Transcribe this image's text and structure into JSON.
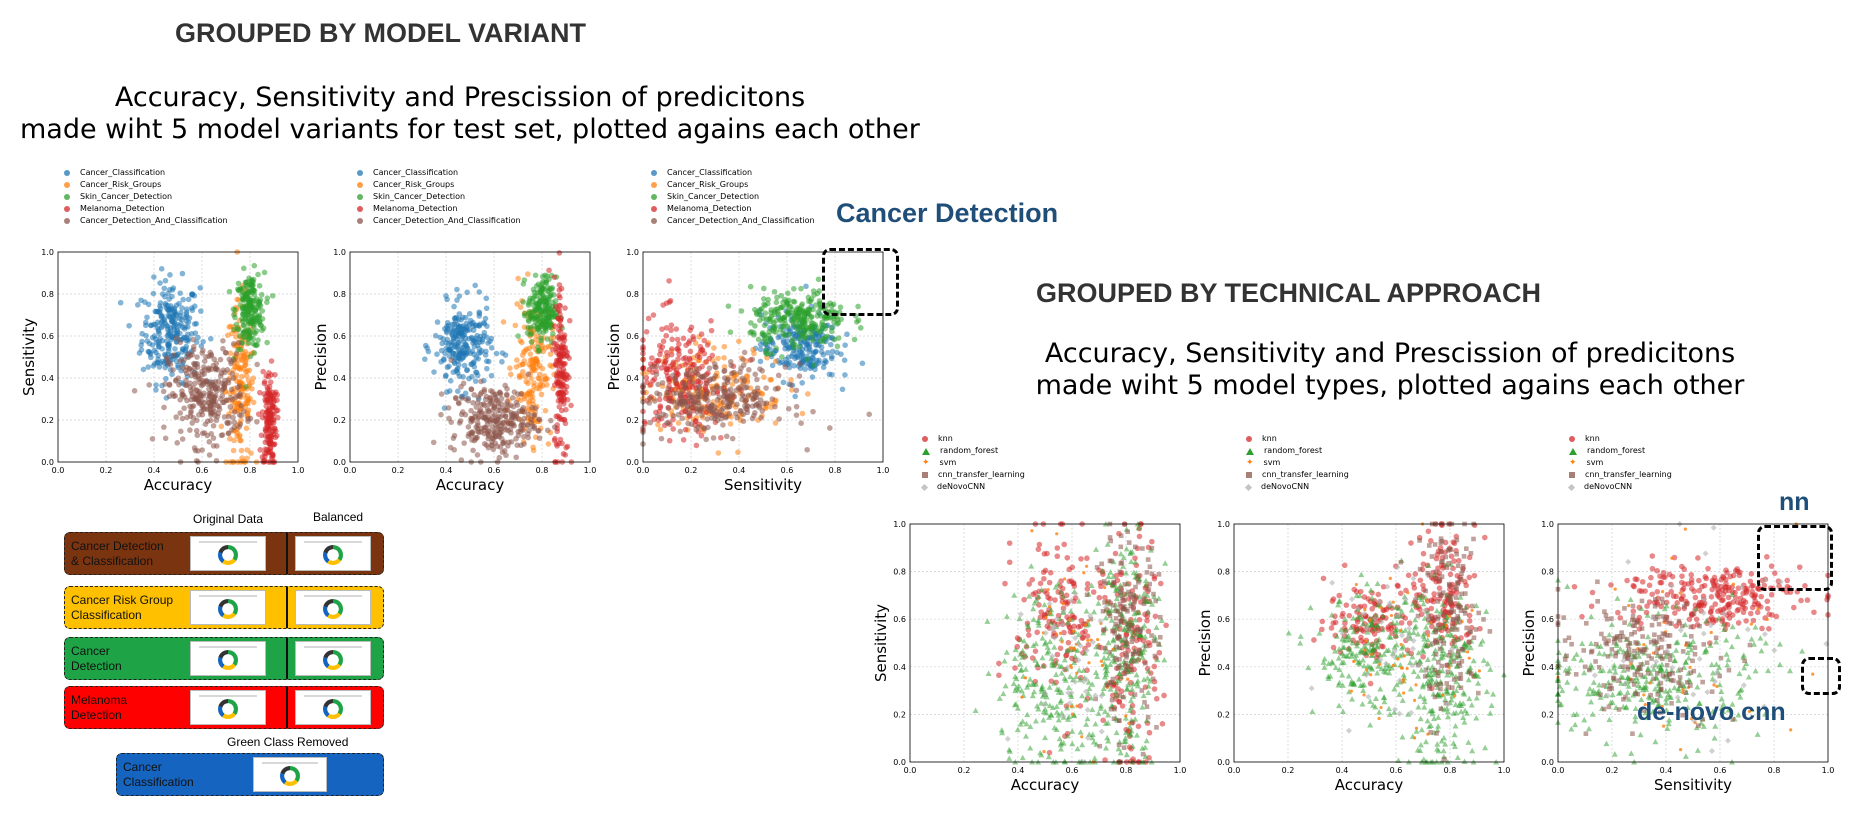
{
  "left_section": {
    "title": "GROUPED BY MODEL VARIANT",
    "subtitle_line1": "Accuracy, Sensitivity and Prescission of predicitons",
    "subtitle_line2": "made wiht 5 model variants for test set, plotted agains each other",
    "legend": [
      "Cancer_Classification",
      "Cancer_Risk_Groups",
      "Skin_Cancer_Detection",
      "Melanoma_Detection",
      "Cancer_Detection_And_Classification"
    ],
    "colors": [
      "#1f77b4",
      "#ff7f0e",
      "#2ca02c",
      "#d62728",
      "#8c564b"
    ]
  },
  "right_section": {
    "title": "GROUPED BY TECHNICAL APPROACH",
    "subtitle_line1": "Accuracy, Sensitivity and Prescission of predicitons",
    "subtitle_line2": "made wiht 5 model types, plotted agains each other",
    "legend": [
      "knn",
      "random_forest",
      "svm",
      "cnn_transfer_learning",
      "deNovoCNN"
    ],
    "colors": [
      "#d62728",
      "#2ca02c",
      "#ff7f0e",
      "#8c564b",
      "#b0b0b0"
    ],
    "markers": [
      "circle",
      "triangle",
      "star",
      "square",
      "diamond"
    ]
  },
  "annotations": {
    "cancer_detection": "Cancer Detection",
    "nn": "nn",
    "de_novo_cnn": "de-novo cnn"
  },
  "data_panels": {
    "col_original": "Original Data",
    "col_balanced": "Balanced",
    "green_removed": "Green Class Removed",
    "rows": [
      {
        "label": "Cancer Detection\n& Classification",
        "color": "#7b3410"
      },
      {
        "label": "Cancer Risk Group\nClassification",
        "color": "#ffc000"
      },
      {
        "label": "Cancer\nDetection",
        "color": "#1ea446"
      },
      {
        "label": "Melanoma\nDetection",
        "color": "#ff0000"
      },
      {
        "label": "Cancer\nClassification",
        "color": "#1565c0"
      }
    ]
  },
  "chart_data": [
    {
      "type": "scatter",
      "xlabel": "Accuracy",
      "ylabel": "Sensitivity",
      "xlim": [
        0,
        1
      ],
      "ylim": [
        0,
        1
      ],
      "grid": true,
      "xticks": [
        "0.0",
        "0.2",
        "0.4",
        "0.6",
        "0.8",
        "1.0"
      ],
      "yticks": [
        "0.0",
        "0.2",
        "0.4",
        "0.6",
        "0.8",
        "1.0"
      ],
      "series": [
        {
          "name": "Cancer_Classification",
          "clusters": [
            {
              "x": 0.47,
              "y": 0.62,
              "sx": 0.06,
              "sy": 0.12,
              "n": 260
            }
          ]
        },
        {
          "name": "Cancer_Risk_Groups",
          "clusters": [
            {
              "x": 0.76,
              "y": 0.35,
              "sx": 0.03,
              "sy": 0.2,
              "n": 180
            }
          ]
        },
        {
          "name": "Skin_Cancer_Detection",
          "clusters": [
            {
              "x": 0.8,
              "y": 0.72,
              "sx": 0.03,
              "sy": 0.09,
              "n": 200
            }
          ]
        },
        {
          "name": "Melanoma_Detection",
          "clusters": [
            {
              "x": 0.88,
              "y": 0.2,
              "sx": 0.015,
              "sy": 0.12,
              "n": 160
            }
          ]
        },
        {
          "name": "Cancer_Detection_And_Classification",
          "clusters": [
            {
              "x": 0.62,
              "y": 0.32,
              "sx": 0.08,
              "sy": 0.12,
              "n": 300
            }
          ]
        }
      ]
    },
    {
      "type": "scatter",
      "xlabel": "Accuracy",
      "ylabel": "Precision",
      "xlim": [
        0,
        1
      ],
      "ylim": [
        0,
        1
      ],
      "grid": true,
      "xticks": [
        "0.0",
        "0.2",
        "0.4",
        "0.6",
        "0.8",
        "1.0"
      ],
      "yticks": [
        "0.0",
        "0.2",
        "0.4",
        "0.6",
        "0.8",
        "1.0"
      ],
      "series": [
        {
          "name": "Cancer_Classification",
          "clusters": [
            {
              "x": 0.47,
              "y": 0.55,
              "sx": 0.06,
              "sy": 0.1,
              "n": 240
            }
          ]
        },
        {
          "name": "Cancer_Risk_Groups",
          "clusters": [
            {
              "x": 0.76,
              "y": 0.45,
              "sx": 0.04,
              "sy": 0.17,
              "n": 170
            }
          ]
        },
        {
          "name": "Skin_Cancer_Detection",
          "clusters": [
            {
              "x": 0.8,
              "y": 0.72,
              "sx": 0.03,
              "sy": 0.08,
              "n": 200
            }
          ]
        },
        {
          "name": "Melanoma_Detection",
          "clusters": [
            {
              "x": 0.88,
              "y": 0.45,
              "sx": 0.015,
              "sy": 0.22,
              "n": 170
            }
          ]
        },
        {
          "name": "Cancer_Detection_And_Classification",
          "clusters": [
            {
              "x": 0.6,
              "y": 0.2,
              "sx": 0.09,
              "sy": 0.08,
              "n": 280
            }
          ]
        }
      ]
    },
    {
      "type": "scatter",
      "xlabel": "Sensitivity",
      "ylabel": "Precision",
      "xlim": [
        0,
        1
      ],
      "ylim": [
        0,
        1
      ],
      "grid": true,
      "xticks": [
        "0.0",
        "0.2",
        "0.4",
        "0.6",
        "0.8",
        "1.0"
      ],
      "yticks": [
        "0.0",
        "0.2",
        "0.4",
        "0.6",
        "0.8",
        "1.0"
      ],
      "series": [
        {
          "name": "Cancer_Classification",
          "clusters": [
            {
              "x": 0.65,
              "y": 0.55,
              "sx": 0.08,
              "sy": 0.08,
              "n": 220
            }
          ]
        },
        {
          "name": "Cancer_Risk_Groups",
          "clusters": [
            {
              "x": 0.3,
              "y": 0.35,
              "sx": 0.15,
              "sy": 0.1,
              "n": 180
            }
          ]
        },
        {
          "name": "Skin_Cancer_Detection",
          "clusters": [
            {
              "x": 0.65,
              "y": 0.68,
              "sx": 0.1,
              "sy": 0.07,
              "n": 260
            }
          ]
        },
        {
          "name": "Melanoma_Detection",
          "clusters": [
            {
              "x": 0.15,
              "y": 0.4,
              "sx": 0.1,
              "sy": 0.14,
              "n": 220
            }
          ]
        },
        {
          "name": "Cancer_Detection_And_Classification",
          "clusters": [
            {
              "x": 0.3,
              "y": 0.3,
              "sx": 0.15,
              "sy": 0.08,
              "n": 280
            }
          ]
        }
      ]
    },
    {
      "type": "scatter",
      "xlabel": "Accuracy",
      "ylabel": "Sensitivity",
      "xlim": [
        0,
        1
      ],
      "ylim": [
        0,
        1
      ],
      "grid": true,
      "xticks": [
        "0.0",
        "0.2",
        "0.4",
        "0.6",
        "0.8",
        "1.0"
      ],
      "yticks": [
        "0.0",
        "0.2",
        "0.4",
        "0.6",
        "0.8",
        "1.0"
      ],
      "series": [
        {
          "name": "knn",
          "clusters": [
            {
              "x": 0.55,
              "y": 0.6,
              "sx": 0.08,
              "sy": 0.2,
              "n": 150
            },
            {
              "x": 0.82,
              "y": 0.45,
              "sx": 0.05,
              "sy": 0.25,
              "n": 150
            }
          ]
        },
        {
          "name": "random_forest",
          "clusters": [
            {
              "x": 0.55,
              "y": 0.35,
              "sx": 0.12,
              "sy": 0.2,
              "n": 260
            },
            {
              "x": 0.8,
              "y": 0.5,
              "sx": 0.06,
              "sy": 0.25,
              "n": 220
            }
          ]
        },
        {
          "name": "svm",
          "clusters": [
            {
              "x": 0.6,
              "y": 0.4,
              "sx": 0.1,
              "sy": 0.2,
              "n": 50
            }
          ]
        },
        {
          "name": "cnn_transfer_learning",
          "clusters": [
            {
              "x": 0.8,
              "y": 0.55,
              "sx": 0.06,
              "sy": 0.2,
              "n": 150
            }
          ]
        },
        {
          "name": "deNovoCNN",
          "clusters": [
            {
              "x": 0.6,
              "y": 0.45,
              "sx": 0.1,
              "sy": 0.2,
              "n": 40
            }
          ]
        }
      ]
    },
    {
      "type": "scatter",
      "xlabel": "Accuracy",
      "ylabel": "Precision",
      "xlim": [
        0,
        1
      ],
      "ylim": [
        0,
        1
      ],
      "grid": true,
      "xticks": [
        "0.0",
        "0.2",
        "0.4",
        "0.6",
        "0.8",
        "1.0"
      ],
      "yticks": [
        "0.0",
        "0.2",
        "0.4",
        "0.6",
        "0.8",
        "1.0"
      ],
      "series": [
        {
          "name": "knn",
          "clusters": [
            {
              "x": 0.5,
              "y": 0.6,
              "sx": 0.08,
              "sy": 0.08,
              "n": 120
            },
            {
              "x": 0.78,
              "y": 0.7,
              "sx": 0.06,
              "sy": 0.14,
              "n": 150
            }
          ]
        },
        {
          "name": "random_forest",
          "clusters": [
            {
              "x": 0.5,
              "y": 0.45,
              "sx": 0.1,
              "sy": 0.12,
              "n": 220
            },
            {
              "x": 0.78,
              "y": 0.35,
              "sx": 0.08,
              "sy": 0.2,
              "n": 250
            }
          ]
        },
        {
          "name": "svm",
          "clusters": [
            {
              "x": 0.65,
              "y": 0.5,
              "sx": 0.12,
              "sy": 0.2,
              "n": 50
            }
          ]
        },
        {
          "name": "cnn_transfer_learning",
          "clusters": [
            {
              "x": 0.8,
              "y": 0.6,
              "sx": 0.06,
              "sy": 0.2,
              "n": 150
            }
          ]
        },
        {
          "name": "deNovoCNN",
          "clusters": [
            {
              "x": 0.6,
              "y": 0.5,
              "sx": 0.1,
              "sy": 0.2,
              "n": 40
            }
          ]
        }
      ]
    },
    {
      "type": "scatter",
      "xlabel": "Sensitivity",
      "ylabel": "Precision",
      "xlim": [
        0,
        1
      ],
      "ylim": [
        0,
        1
      ],
      "grid": true,
      "xticks": [
        "0.0",
        "0.2",
        "0.4",
        "0.6",
        "0.8",
        "1.0"
      ],
      "yticks": [
        "0.0",
        "0.2",
        "0.4",
        "0.6",
        "0.8",
        "1.0"
      ],
      "series": [
        {
          "name": "knn",
          "clusters": [
            {
              "x": 0.55,
              "y": 0.7,
              "sx": 0.18,
              "sy": 0.07,
              "n": 260
            }
          ]
        },
        {
          "name": "random_forest",
          "clusters": [
            {
              "x": 0.35,
              "y": 0.35,
              "sx": 0.2,
              "sy": 0.13,
              "n": 320
            }
          ]
        },
        {
          "name": "svm",
          "clusters": [
            {
              "x": 0.5,
              "y": 0.5,
              "sx": 0.2,
              "sy": 0.2,
              "n": 40
            }
          ]
        },
        {
          "name": "cnn_transfer_learning",
          "clusters": [
            {
              "x": 0.3,
              "y": 0.45,
              "sx": 0.15,
              "sy": 0.12,
              "n": 200
            }
          ]
        },
        {
          "name": "deNovoCNN",
          "clusters": [
            {
              "x": 0.5,
              "y": 0.5,
              "sx": 0.2,
              "sy": 0.2,
              "n": 40
            }
          ]
        }
      ]
    }
  ]
}
